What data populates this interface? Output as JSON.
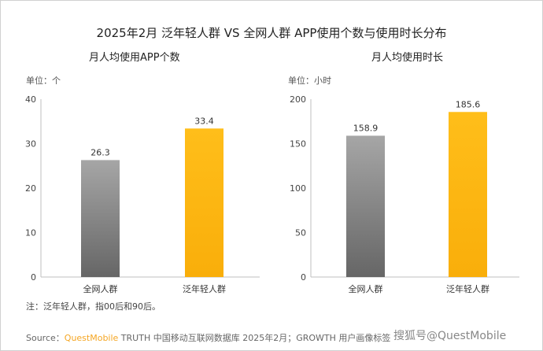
{
  "title": "2025年2月 泛年轻人群 VS 全网人群 APP使用个数与使用时长分布",
  "note": "注：泛年轻人群，指00后和90后。",
  "source": {
    "prefix": "Source：",
    "brand": "QuestMobile",
    "text": " TRUTH 中国移动互联网数据库 2025年2月；GROWTH 用户画像标签",
    "watermark": "搜狐号@QuestMobile"
  },
  "colors": {
    "gray_top": "#a6a6a6",
    "gray_bottom": "#6b6b6b",
    "orange": "#FDB813",
    "axis": "#bfbfbf"
  },
  "chart_data": [
    {
      "type": "bar",
      "title": "月人均使用APP个数",
      "unit": "单位：个",
      "categories": [
        "全网人群",
        "泛年轻人群"
      ],
      "values": [
        26.3,
        33.4
      ],
      "labels": [
        "26.3",
        "33.4"
      ],
      "ylim": [
        0,
        40
      ],
      "yticks": [
        0,
        10,
        20,
        30,
        40
      ],
      "grid": false
    },
    {
      "type": "bar",
      "title": "月人均使用时长",
      "unit": "单位：小时",
      "categories": [
        "全网人群",
        "泛年轻人群"
      ],
      "values": [
        158.9,
        185.6
      ],
      "labels": [
        "158.9",
        "185.6"
      ],
      "ylim": [
        0,
        200
      ],
      "yticks": [
        0,
        50,
        100,
        150,
        200
      ],
      "grid": false
    }
  ]
}
